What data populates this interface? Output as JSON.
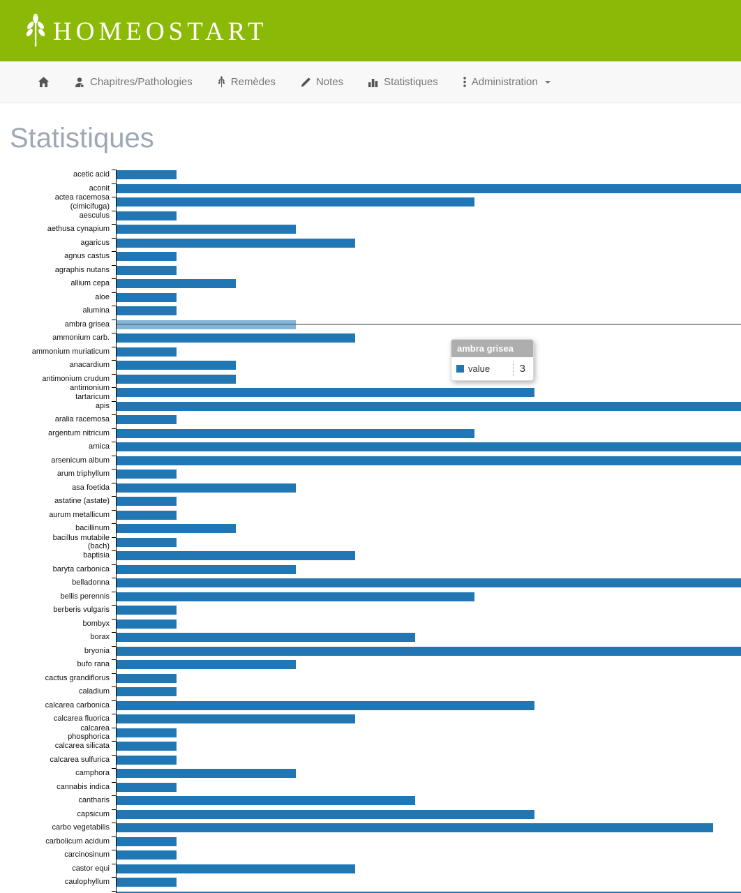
{
  "header": {
    "brand": "HOMEOSTART",
    "background_color": "#8cb908",
    "text_color": "#ffffff"
  },
  "nav": {
    "items": [
      {
        "name": "home",
        "label": "",
        "icon": "home-icon"
      },
      {
        "name": "chapitres-pathologies",
        "label": "Chapitres/Pathologies",
        "icon": "doctor-icon"
      },
      {
        "name": "remedes",
        "label": "Remèdes",
        "icon": "plant-icon"
      },
      {
        "name": "notes",
        "label": "Notes",
        "icon": "pencil-icon"
      },
      {
        "name": "statistiques",
        "label": "Statistiques",
        "icon": "bar-chart-icon"
      },
      {
        "name": "administration",
        "label": "Administration",
        "icon": "kebab-menu-icon",
        "caret": true
      }
    ]
  },
  "page": {
    "title": "Statistiques"
  },
  "chart_data": {
    "type": "bar",
    "orientation": "horizontal",
    "series_name": "value",
    "xlim": [
      0,
      10.48
    ],
    "grid": false,
    "bar_color": "#2077b3",
    "highlighted_category": "ambra grisea",
    "highlighted_value": 3,
    "note_clipped": "bars flagged clipped run past the right edge of the viewport; true value not visible",
    "bars": [
      {
        "label": "acetic acid",
        "value": 1
      },
      {
        "label": "aconit",
        "value": null,
        "clipped": true
      },
      {
        "label": "actea racemosa\n(cimicifuga)",
        "value": 6
      },
      {
        "label": "aesculus",
        "value": 1
      },
      {
        "label": "aethusa cynapium",
        "value": 3
      },
      {
        "label": "agaricus",
        "value": 4
      },
      {
        "label": "agnus castus",
        "value": 1
      },
      {
        "label": "agraphis nutans",
        "value": 1
      },
      {
        "label": "allium cepa",
        "value": 2
      },
      {
        "label": "aloe",
        "value": 1
      },
      {
        "label": "alumina",
        "value": 1
      },
      {
        "label": "ambra grisea",
        "value": 3
      },
      {
        "label": "ammonium carb.",
        "value": 4
      },
      {
        "label": "ammonium muriaticum",
        "value": 1
      },
      {
        "label": "anacardium",
        "value": 2
      },
      {
        "label": "antimonium crudum",
        "value": 2
      },
      {
        "label": "antimonium\ntartaricum",
        "value": 7
      },
      {
        "label": "apis",
        "value": null,
        "clipped": true
      },
      {
        "label": "aralia racemosa",
        "value": 1
      },
      {
        "label": "argentum nitricum",
        "value": 6
      },
      {
        "label": "arnica",
        "value": null,
        "clipped": true
      },
      {
        "label": "arsenicum album",
        "value": null,
        "clipped": true
      },
      {
        "label": "arum triphyllum",
        "value": 1
      },
      {
        "label": "asa foetida",
        "value": 3
      },
      {
        "label": "astatine (astate)",
        "value": 1
      },
      {
        "label": "aurum metallicum",
        "value": 1
      },
      {
        "label": "bacillinum",
        "value": 2
      },
      {
        "label": "bacillus mutabile\n(bach)",
        "value": 1
      },
      {
        "label": "baptisia",
        "value": 4
      },
      {
        "label": "baryta carbonica",
        "value": 3
      },
      {
        "label": "belladonna",
        "value": null,
        "clipped": true
      },
      {
        "label": "bellis perennis",
        "value": 6
      },
      {
        "label": "berberis vulgaris",
        "value": 1
      },
      {
        "label": "bombyx",
        "value": 1
      },
      {
        "label": "borax",
        "value": 5
      },
      {
        "label": "bryonia",
        "value": null,
        "clipped": true
      },
      {
        "label": "bufo rana",
        "value": 3
      },
      {
        "label": "cactus grandiflorus",
        "value": 1
      },
      {
        "label": "caladium",
        "value": 1
      },
      {
        "label": "calcarea carbonica",
        "value": 7
      },
      {
        "label": "calcarea fluorica",
        "value": 4
      },
      {
        "label": "calcarea\nphosphorica",
        "value": 1
      },
      {
        "label": "calcarea silicata",
        "value": 1
      },
      {
        "label": "calcarea sulfurica",
        "value": 1
      },
      {
        "label": "camphora",
        "value": 3
      },
      {
        "label": "cannabis indica",
        "value": 1
      },
      {
        "label": "cantharis",
        "value": 5
      },
      {
        "label": "capsicum",
        "value": 7
      },
      {
        "label": "carbo vegetabilis",
        "value": 10
      },
      {
        "label": "carbolicum acidum",
        "value": 1
      },
      {
        "label": "carcinosinum",
        "value": 1
      },
      {
        "label": "castor equi",
        "value": 4
      },
      {
        "label": "caulophyllum",
        "value": 1
      },
      {
        "label": "",
        "value": null,
        "clipped": true
      }
    ]
  },
  "tooltip": {
    "title": "ambra grisea",
    "series_label": "value",
    "value": 3,
    "header_color": "#aeaeae"
  }
}
